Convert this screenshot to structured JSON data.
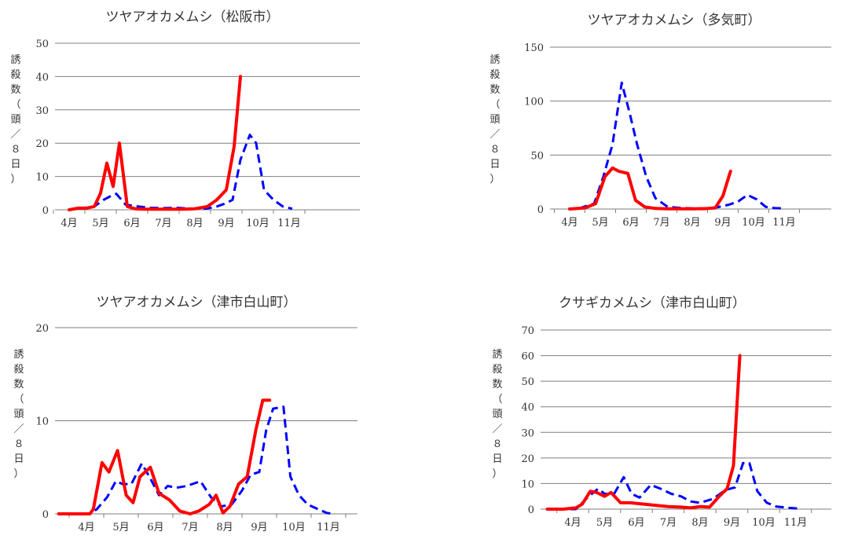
{
  "chart_data": [
    {
      "type": "line",
      "title": "ツヤアオカメムシ（松阪市）",
      "ylabel": "誘殺数（頭／８日）",
      "ylim": [
        0,
        50
      ],
      "yticks": [
        0,
        10,
        20,
        30,
        40,
        50
      ],
      "xlabels": [
        "4月",
        "5月",
        "6月",
        "7月",
        "8月",
        "9月",
        "10月",
        "11月"
      ],
      "grid": true,
      "series": [
        {
          "color": "#ff0000",
          "style": "solid",
          "x": [
            0,
            0.3,
            0.55,
            0.8,
            1.0,
            1.2,
            1.4,
            1.6,
            1.85,
            2.1,
            2.4,
            2.8,
            3.2,
            3.6,
            4.0,
            4.4,
            4.7,
            5.0,
            5.25,
            5.45
          ],
          "y": [
            0,
            0.5,
            0.5,
            1.0,
            5.0,
            14.0,
            7.0,
            20.0,
            1.0,
            0.3,
            0.2,
            0.2,
            0.2,
            0.2,
            0.3,
            1.0,
            3.0,
            6.0,
            19.0,
            40.0
          ]
        },
        {
          "color": "#0000ff",
          "style": "dashed",
          "x": [
            0.3,
            0.8,
            1.1,
            1.3,
            1.5,
            1.8,
            2.2,
            2.6,
            3.0,
            3.4,
            3.8,
            4.1,
            4.4,
            4.7,
            5.0,
            5.2,
            5.45,
            5.75,
            5.95,
            6.2,
            6.5,
            6.8,
            7.1
          ],
          "y": [
            0.3,
            1.0,
            3.0,
            4.0,
            4.8,
            1.5,
            1.0,
            0.6,
            0.5,
            0.6,
            0.4,
            0.3,
            0.4,
            1.0,
            2.0,
            3.0,
            15.0,
            22.5,
            20.0,
            6.0,
            3.0,
            1.0,
            0.3
          ]
        }
      ]
    },
    {
      "type": "line",
      "title": "ツヤアオカメムシ（多気町）",
      "ylabel": "誘殺数（頭／８日）",
      "ylim": [
        0,
        150
      ],
      "yticks": [
        0,
        50,
        100,
        150
      ],
      "xlabels": [
        "4月",
        "5月",
        "6月",
        "7月",
        "8月",
        "9月",
        "10月",
        "11月"
      ],
      "grid": true,
      "series": [
        {
          "color": "#ff0000",
          "style": "solid",
          "x": [
            0,
            0.5,
            0.85,
            1.15,
            1.4,
            1.6,
            1.9,
            2.15,
            2.45,
            2.8,
            3.2,
            3.6,
            4.0,
            4.4,
            4.75,
            5.0,
            5.25
          ],
          "y": [
            0,
            1.0,
            5.0,
            30.0,
            38.0,
            35.0,
            33.0,
            8.0,
            2.0,
            0.5,
            0.2,
            0.2,
            0.2,
            0.3,
            1.0,
            12.0,
            35.0
          ]
        },
        {
          "color": "#0000ff",
          "style": "dashed",
          "x": [
            0.3,
            0.8,
            1.1,
            1.4,
            1.7,
            1.95,
            2.2,
            2.5,
            2.8,
            3.2,
            3.6,
            4.0,
            4.4,
            4.8,
            5.2,
            5.5,
            5.8,
            6.1,
            6.4,
            6.7,
            7.0
          ],
          "y": [
            0.5,
            5.0,
            30.0,
            60.0,
            117.0,
            90.0,
            60.0,
            30.0,
            10.0,
            2.0,
            1.0,
            0.5,
            0.5,
            1.5,
            4.0,
            7.0,
            13.0,
            9.0,
            2.0,
            0.8,
            0.5
          ]
        }
      ]
    },
    {
      "type": "line",
      "title": "ツヤアオカメムシ（津市白山町）",
      "ylabel": "誘殺数（頭／８日）",
      "ylim": [
        0,
        20
      ],
      "yticks": [
        0,
        10,
        20
      ],
      "xlabels": [
        "4月",
        "5月",
        "6月",
        "7月",
        "8月",
        "9月",
        "10月",
        "11月"
      ],
      "grid": true,
      "series": [
        {
          "color": "#ff0000",
          "style": "solid",
          "x": [
            -0.8,
            -0.3,
            0.1,
            0.2,
            0.45,
            0.65,
            0.9,
            1.15,
            1.35,
            1.55,
            1.85,
            2.1,
            2.4,
            2.7,
            3.0,
            3.25,
            3.55,
            3.75,
            3.95,
            4.15,
            4.4,
            4.65,
            4.9,
            5.1,
            5.3
          ],
          "y": [
            0,
            0,
            0,
            0.5,
            5.5,
            4.5,
            6.8,
            2.0,
            1.2,
            4.0,
            5.0,
            2.2,
            1.5,
            0.3,
            0.0,
            0.3,
            1.0,
            2.0,
            0.1,
            0.8,
            3.2,
            4.0,
            9.0,
            12.2,
            12.2
          ]
        },
        {
          "color": "#0000ff",
          "style": "dashed",
          "x": [
            -0.5,
            0.1,
            0.3,
            0.6,
            0.85,
            1.05,
            1.3,
            1.6,
            1.85,
            2.1,
            2.35,
            2.6,
            2.9,
            3.3,
            3.6,
            3.9,
            4.2,
            4.5,
            4.75,
            5.0,
            5.2,
            5.4,
            5.7,
            5.9,
            6.15,
            6.4,
            6.7,
            6.95,
            7.15
          ],
          "y": [
            0,
            0,
            0.5,
            1.8,
            3.5,
            3.2,
            3.2,
            5.4,
            3.8,
            2.0,
            3.0,
            2.8,
            3.0,
            3.5,
            1.8,
            0.8,
            1.0,
            2.5,
            4.2,
            4.5,
            9.0,
            11.3,
            11.5,
            4.0,
            2.0,
            1.0,
            0.5,
            0.1,
            0.0
          ]
        }
      ]
    },
    {
      "type": "line",
      "title": "クサギカメムシ（津市白山町）",
      "ylabel": "誘殺数（頭／８日）",
      "ylim": [
        0,
        70
      ],
      "yticks": [
        0,
        10,
        20,
        30,
        40,
        50,
        60,
        70
      ],
      "xlabels": [
        "4月",
        "5月",
        "6月",
        "7月",
        "8月",
        "9月",
        "10月",
        "11月"
      ],
      "grid": true,
      "series": [
        {
          "color": "#ff0000",
          "style": "solid",
          "x": [
            -0.8,
            -0.3,
            0.1,
            0.3,
            0.55,
            0.75,
            1.0,
            1.2,
            1.5,
            1.8,
            2.2,
            2.6,
            3.0,
            3.4,
            3.7,
            4.0,
            4.3,
            4.6,
            4.85,
            5.05,
            5.25
          ],
          "y": [
            0,
            0,
            0.5,
            2.0,
            7.0,
            6.5,
            5.0,
            6.5,
            2.5,
            2.5,
            2.0,
            1.5,
            1.0,
            0.8,
            0.5,
            1.0,
            0.8,
            5.0,
            8.0,
            17.0,
            60.0
          ]
        },
        {
          "color": "#0000ff",
          "style": "dashed",
          "x": [
            -0.5,
            0.1,
            0.5,
            0.8,
            1.0,
            1.3,
            1.6,
            1.85,
            2.1,
            2.45,
            2.75,
            3.1,
            3.4,
            3.7,
            4.0,
            4.4,
            4.8,
            5.1,
            5.35,
            5.55,
            5.8,
            6.1,
            6.4,
            6.8,
            7.1
          ],
          "y": [
            0,
            0,
            5.0,
            8.0,
            6.0,
            6.0,
            12.5,
            6.0,
            4.5,
            9.5,
            8.0,
            6.0,
            5.0,
            3.0,
            2.5,
            4.0,
            7.5,
            8.5,
            18.0,
            18.0,
            7.0,
            2.5,
            1.0,
            0.5,
            0.2
          ]
        }
      ]
    }
  ]
}
